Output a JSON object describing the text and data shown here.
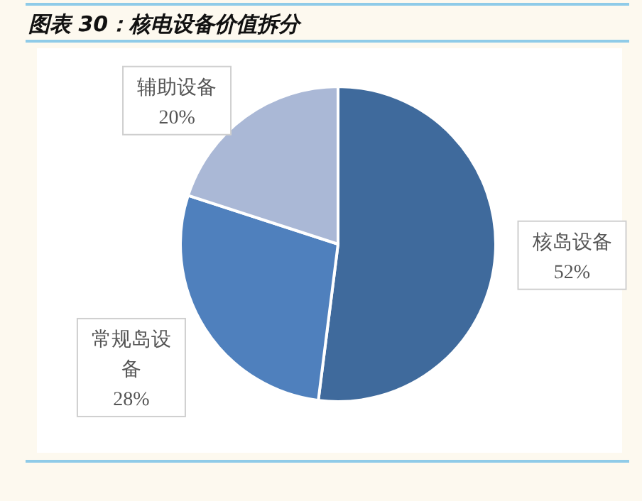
{
  "chart_data": {
    "type": "pie",
    "title": "图表 30：核电设备价值拆分",
    "categories": [
      "核岛设备",
      "常规岛设备",
      "辅助设备"
    ],
    "values": [
      52,
      28,
      20
    ],
    "colors": [
      "#3f6a9c",
      "#4f80bd",
      "#aab8d6"
    ],
    "value_labels": [
      "52%",
      "28%",
      "20%"
    ]
  }
}
